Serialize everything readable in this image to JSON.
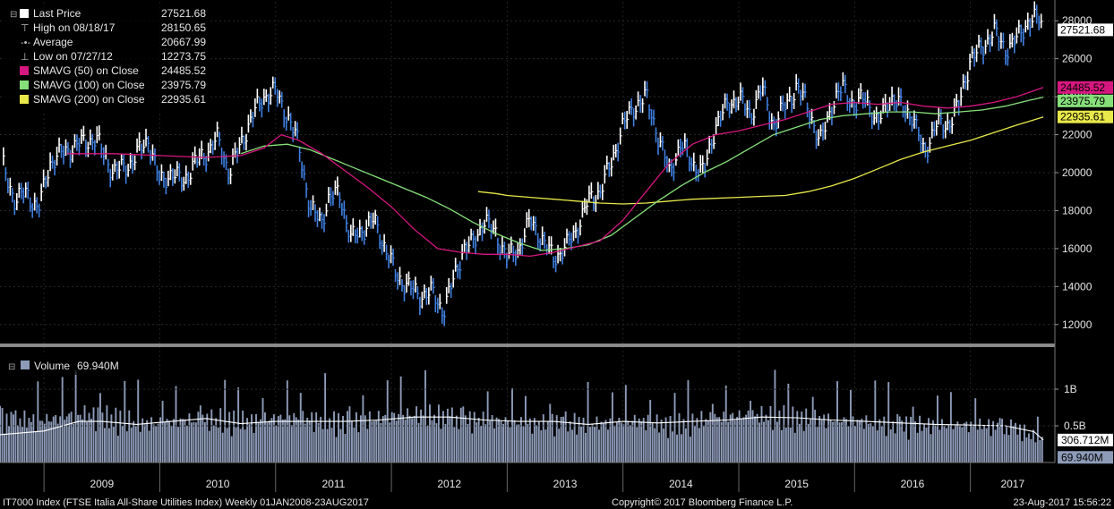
{
  "chart_data": {
    "type": "line",
    "colors": {
      "background": "#000000",
      "price": "#ffffff",
      "price_down": "#3f7fe0",
      "sma50": "#d6177f",
      "sma100": "#86e07a",
      "sma200": "#e8e84a",
      "volume": "#8d9bb8",
      "volume_avg": "#ffffff"
    },
    "legend": {
      "placement": "top-left",
      "items": [
        {
          "key": "last",
          "label": "Last Price",
          "value": "27521.68",
          "marker": "square",
          "color": "#ffffff"
        },
        {
          "key": "high",
          "label": "High on 08/18/17",
          "value": "28150.65",
          "marker": "high-icon",
          "color": "#cccccc"
        },
        {
          "key": "avg",
          "label": "Average",
          "value": "20667.99",
          "marker": "average-icon",
          "color": "#cccccc"
        },
        {
          "key": "low",
          "label": "Low on 07/27/12",
          "value": "12273.75",
          "marker": "low-icon",
          "color": "#cccccc"
        },
        {
          "key": "sma50",
          "label": "SMAVG (50) on Close",
          "value": "24485.52",
          "marker": "square",
          "color": "#d6177f"
        },
        {
          "key": "sma100",
          "label": "SMAVG (100) on Close",
          "value": "23975.79",
          "marker": "square",
          "color": "#86e07a"
        },
        {
          "key": "sma200",
          "label": "SMAVG (200) on Close",
          "value": "22935.61",
          "marker": "square",
          "color": "#e8e84a"
        }
      ]
    },
    "price_axis": {
      "range": [
        11000,
        29000
      ],
      "ticks": [
        "12000",
        "14000",
        "16000",
        "18000",
        "20000",
        "22000",
        "24000",
        "26000",
        "28000"
      ],
      "tags": [
        {
          "value": 27521.68,
          "text": "27521.68",
          "bg": "#ffffff"
        },
        {
          "value": 24485.52,
          "text": "24485.52",
          "bg": "#d6177f"
        },
        {
          "value": 23975.79,
          "text": "23975.79",
          "bg": "#86e07a"
        },
        {
          "value": 22935.61,
          "text": "22935.61",
          "bg": "#e8e84a"
        }
      ]
    },
    "x_axis": {
      "range": [
        2008.62,
        2017.73
      ],
      "years": [
        "2009",
        "2010",
        "2011",
        "2012",
        "2013",
        "2014",
        "2015",
        "2016",
        "2017"
      ]
    },
    "price_series": {
      "x": [
        2008.65,
        2008.75,
        2008.85,
        2008.95,
        2009.05,
        2009.15,
        2009.3,
        2009.45,
        2009.6,
        2009.75,
        2009.9,
        2010.0,
        2010.1,
        2010.2,
        2010.3,
        2010.4,
        2010.5,
        2010.6,
        2010.7,
        2010.8,
        2010.9,
        2011.0,
        2011.1,
        2011.2,
        2011.3,
        2011.4,
        2011.45,
        2011.55,
        2011.65,
        2011.75,
        2011.85,
        2011.95,
        2012.05,
        2012.15,
        2012.25,
        2012.35,
        2012.45,
        2012.57,
        2012.62,
        2012.7,
        2012.8,
        2012.9,
        2013.0,
        2013.1,
        2013.2,
        2013.3,
        2013.4,
        2013.5,
        2013.6,
        2013.7,
        2013.8,
        2013.9,
        2014.0,
        2014.1,
        2014.2,
        2014.3,
        2014.4,
        2014.5,
        2014.6,
        2014.7,
        2014.8,
        2014.9,
        2015.0,
        2015.1,
        2015.2,
        2015.3,
        2015.4,
        2015.5,
        2015.6,
        2015.7,
        2015.8,
        2015.9,
        2016.0,
        2016.1,
        2016.2,
        2016.3,
        2016.4,
        2016.5,
        2016.6,
        2016.7,
        2016.8,
        2016.9,
        2017.0,
        2017.1,
        2017.2,
        2017.3,
        2017.4,
        2017.5,
        2017.6,
        2017.63
      ],
      "y": [
        20300,
        18500,
        19000,
        18000,
        20500,
        21000,
        21500,
        21800,
        20000,
        20500,
        21800,
        19500,
        20000,
        19500,
        20500,
        21000,
        21800,
        20000,
        21500,
        23000,
        24000,
        24300,
        23000,
        21500,
        18000,
        17500,
        18500,
        19000,
        16500,
        17000,
        17500,
        16000,
        14500,
        14000,
        13500,
        13700,
        12700,
        15000,
        16000,
        16200,
        17500,
        16800,
        15500,
        16000,
        17500,
        16500,
        15500,
        16000,
        17000,
        18500,
        19000,
        20500,
        22500,
        23500,
        24000,
        22000,
        20000,
        21500,
        20500,
        20000,
        22500,
        23500,
        24000,
        23000,
        24500,
        22500,
        23500,
        24500,
        23500,
        21500,
        23500,
        24500,
        23500,
        24000,
        22500,
        24000,
        23500,
        23000,
        21000,
        22500,
        22500,
        23500,
        26000,
        26500,
        27500,
        26500,
        27000,
        28000,
        28100,
        27521.68
      ]
    },
    "sma50": {
      "x": [
        2009.2,
        2009.6,
        2010.0,
        2010.4,
        2010.7,
        2010.9,
        2011.05,
        2011.2,
        2011.4,
        2011.6,
        2011.8,
        2012.0,
        2012.2,
        2012.4,
        2012.6,
        2012.8,
        2013.0,
        2013.2,
        2013.4,
        2013.6,
        2013.8,
        2014.0,
        2014.2,
        2014.4,
        2014.6,
        2014.8,
        2015.0,
        2015.2,
        2015.4,
        2015.6,
        2015.8,
        2016.0,
        2016.2,
        2016.4,
        2016.6,
        2016.8,
        2017.0,
        2017.2,
        2017.4,
        2017.63
      ],
      "y": [
        21000,
        21000,
        20900,
        20800,
        20900,
        21300,
        22000,
        21700,
        21000,
        20100,
        19200,
        18200,
        17000,
        16000,
        15800,
        15700,
        15700,
        15600,
        15800,
        16100,
        16400,
        17500,
        19000,
        20500,
        21500,
        22000,
        22200,
        22500,
        22800,
        23200,
        23600,
        23700,
        23600,
        23700,
        23500,
        23400,
        23500,
        23700,
        24000,
        24485.52
      ]
    },
    "sma100": {
      "x": [
        2010.7,
        2010.9,
        2011.1,
        2011.3,
        2011.5,
        2011.7,
        2011.9,
        2012.1,
        2012.3,
        2012.5,
        2012.7,
        2012.9,
        2013.1,
        2013.3,
        2013.5,
        2013.7,
        2013.9,
        2014.1,
        2014.3,
        2014.5,
        2014.7,
        2014.9,
        2015.1,
        2015.3,
        2015.5,
        2015.7,
        2015.9,
        2016.1,
        2016.3,
        2016.5,
        2016.7,
        2016.9,
        2017.1,
        2017.3,
        2017.5,
        2017.63
      ],
      "y": [
        21000,
        21400,
        21500,
        21200,
        20700,
        20200,
        19700,
        19200,
        18700,
        18100,
        17400,
        16800,
        16300,
        15900,
        16000,
        16200,
        16700,
        17600,
        18500,
        19300,
        20000,
        20600,
        21300,
        22000,
        22400,
        22800,
        23000,
        23100,
        23200,
        23200,
        23100,
        23200,
        23300,
        23500,
        23800,
        23975.79
      ]
    },
    "sma200": {
      "x": [
        2012.75,
        2012.9,
        2013.0,
        2013.2,
        2013.4,
        2013.6,
        2013.8,
        2014.0,
        2014.2,
        2014.4,
        2014.6,
        2014.8,
        2015.0,
        2015.2,
        2015.4,
        2015.6,
        2015.8,
        2016.0,
        2016.2,
        2016.4,
        2016.6,
        2016.8,
        2017.0,
        2017.2,
        2017.4,
        2017.63
      ],
      "y": [
        19000,
        18900,
        18800,
        18700,
        18600,
        18500,
        18400,
        18350,
        18400,
        18500,
        18600,
        18650,
        18700,
        18750,
        18800,
        19000,
        19300,
        19700,
        20200,
        20700,
        21100,
        21400,
        21700,
        22100,
        22500,
        22935.61
      ]
    },
    "volume": {
      "label": "Volume",
      "value": "69.940M",
      "range": [
        0,
        1550
      ],
      "ticks": [
        "1B",
        "0.5B"
      ],
      "tags": [
        {
          "value": 306.712,
          "text": "306.712M",
          "bg": "#ffffff"
        },
        {
          "value": 69.94,
          "text": "69.940M",
          "bg": "#8d9bb8"
        }
      ],
      "level_x": [
        2008.62,
        2009.0,
        2009.3,
        2009.6,
        2009.9,
        2010.2,
        2010.5,
        2010.8,
        2011.1,
        2011.4,
        2011.7,
        2012.0,
        2012.3,
        2012.6,
        2012.9,
        2013.2,
        2013.5,
        2013.8,
        2014.1,
        2014.4,
        2014.7,
        2015.0,
        2015.3,
        2015.6,
        2015.9,
        2016.2,
        2016.5,
        2016.8,
        2017.1,
        2017.4,
        2017.63
      ],
      "level_y": [
        600,
        560,
        650,
        620,
        520,
        560,
        600,
        560,
        600,
        580,
        560,
        620,
        660,
        600,
        560,
        520,
        560,
        520,
        560,
        520,
        580,
        620,
        640,
        600,
        560,
        540,
        520,
        500,
        500,
        470,
        300
      ],
      "avg_x": [
        2008.62,
        2009.0,
        2009.3,
        2009.5,
        2009.8,
        2010.1,
        2010.4,
        2010.7,
        2011.0,
        2011.3,
        2011.6,
        2011.9,
        2012.2,
        2012.5,
        2012.8,
        2013.1,
        2013.4,
        2013.7,
        2014.0,
        2014.3,
        2014.6,
        2014.9,
        2015.2,
        2015.5,
        2015.8,
        2016.1,
        2016.4,
        2016.7,
        2017.0,
        2017.3,
        2017.55,
        2017.63
      ],
      "avg_y": [
        380,
        430,
        560,
        560,
        520,
        560,
        600,
        530,
        560,
        560,
        560,
        580,
        620,
        620,
        580,
        560,
        560,
        520,
        560,
        540,
        560,
        580,
        620,
        610,
        580,
        560,
        540,
        520,
        510,
        500,
        420,
        306.712
      ]
    },
    "footer": {
      "left": "IT7000 Index (FTSE Italia All-Share Utilities Index)  Weekly 01JAN2008-23AUG2017",
      "center": "Copyright© 2017 Bloomberg Finance L.P.",
      "right": "23-Aug-2017 15:56:22"
    }
  }
}
